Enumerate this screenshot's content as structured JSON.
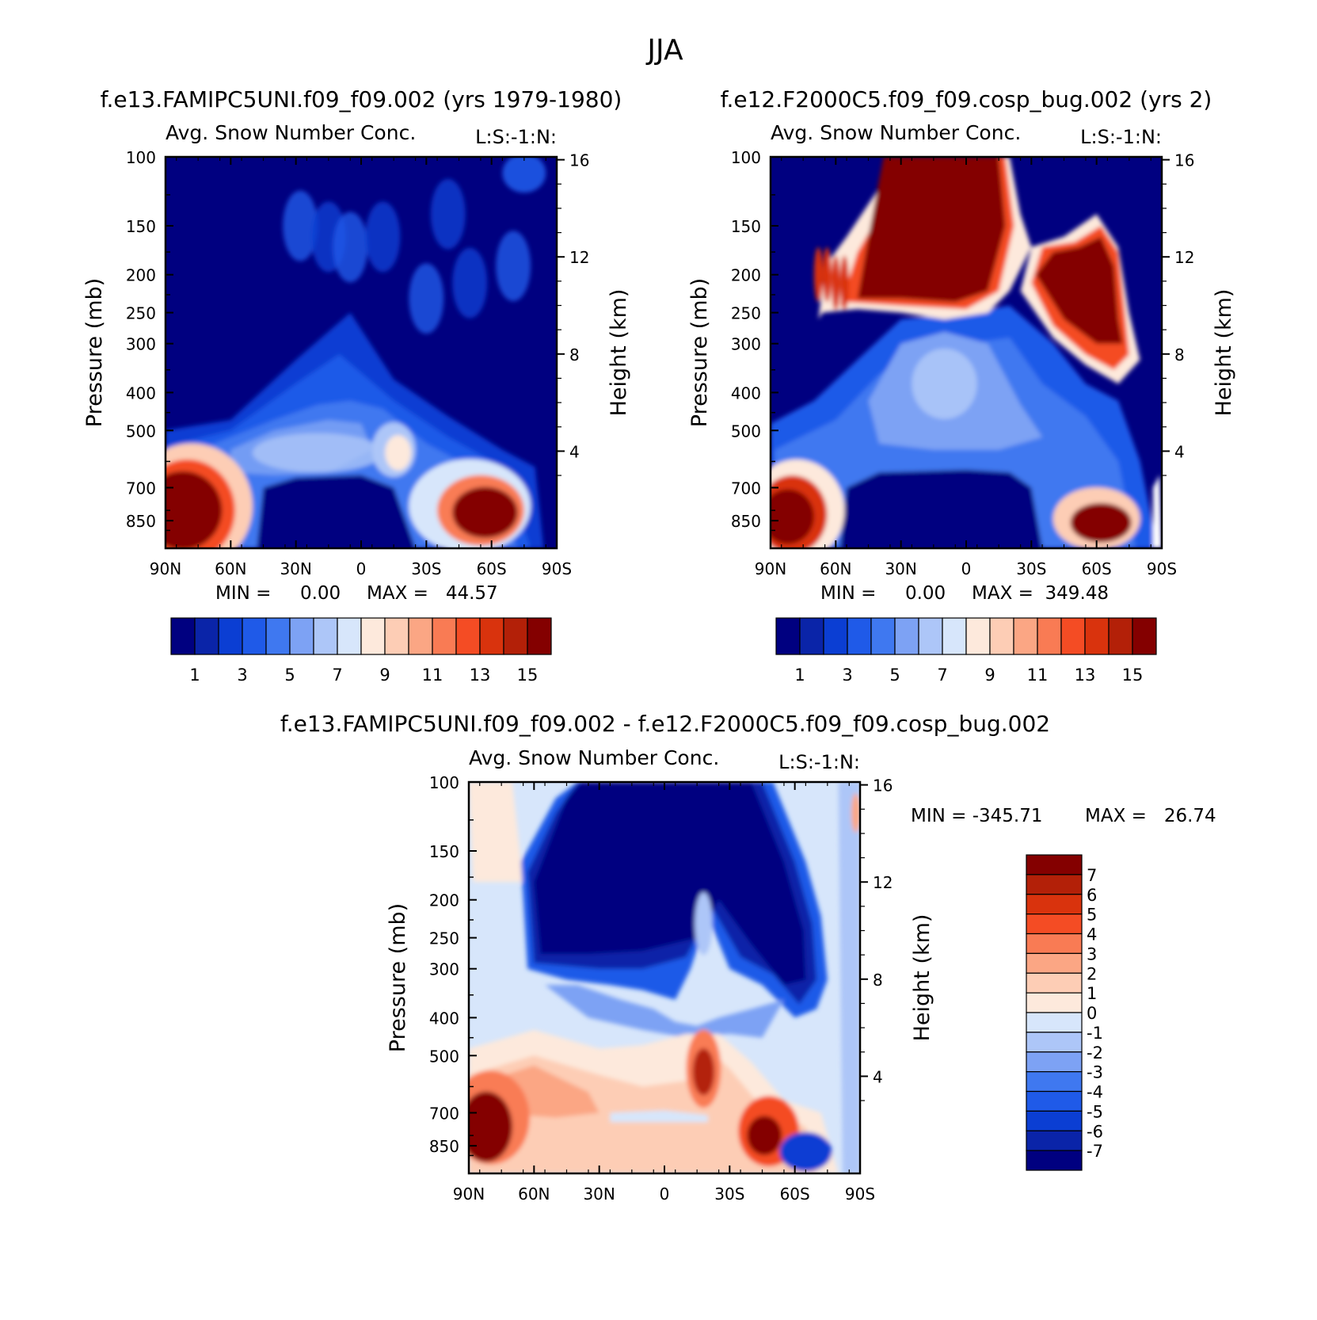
{
  "figure": {
    "season": "JJA"
  },
  "colors": {
    "scale16": [
      "#000080",
      "#0a24a8",
      "#0b3ed3",
      "#1f5ae8",
      "#3f78f0",
      "#7da2f4",
      "#adc6f8",
      "#d7e6fb",
      "#fde9dc",
      "#fdcdb5",
      "#fba684",
      "#f97b54",
      "#f44c24",
      "#d9330d",
      "#b32008",
      "#840000"
    ],
    "diff15": [
      "#000080",
      "#0a24a8",
      "#0b3ed3",
      "#1f5ae8",
      "#3f78f0",
      "#7da2f4",
      "#adc6f8",
      "#d7e6fb",
      "#fde9dc",
      "#fdcdb5",
      "#fba684",
      "#f97b54",
      "#f44c24",
      "#d9330d",
      "#b32008",
      "#840000"
    ]
  },
  "chart_data": [
    {
      "type": "heatmap",
      "panel": "left",
      "case_title": "f.e13.FAMIPC5UNI.f09_f09.002 (yrs 1979-1980)",
      "subtitle": "Avg. Snow Number Conc.",
      "right_string": "L:S:-1:N:",
      "xlabel": "",
      "ylabel": "Pressure (mb)",
      "y2label": "Height (km)",
      "x_ticks": [
        "90N",
        "60N",
        "30N",
        "0",
        "30S",
        "60S",
        "90S"
      ],
      "y_ticks": [
        100,
        150,
        200,
        250,
        300,
        400,
        500,
        700,
        850
      ],
      "y2_ticks": [
        16,
        12,
        8,
        4
      ],
      "min_text": "MIN =     0.00",
      "max_text": "MAX =   44.57",
      "min": 0.0,
      "max": 44.57,
      "colorbar_labels": [
        "1",
        "3",
        "5",
        "7",
        "9",
        "11",
        "13",
        "15"
      ],
      "features": [
        {
          "desc": "high values near surface at 70N",
          "lat": 75,
          "pres": 780,
          "value": 16
        },
        {
          "desc": "high values near surface at 55S",
          "lat": -55,
          "pres": 800,
          "value": 16
        },
        {
          "desc": "moderate values near 500 mb at 15S",
          "lat": -18,
          "pres": 560,
          "value": 9
        }
      ]
    },
    {
      "type": "heatmap",
      "panel": "right",
      "case_title": "f.e12.F2000C5.f09_f09.cosp_bug.002 (yrs 2)",
      "subtitle": "Avg. Snow Number Conc.",
      "right_string": "L:S:-1:N:",
      "xlabel": "",
      "ylabel": "Pressure (mb)",
      "y2label": "Height (km)",
      "x_ticks": [
        "90N",
        "60N",
        "30N",
        "0",
        "30S",
        "60S",
        "90S"
      ],
      "y_ticks": [
        100,
        150,
        200,
        250,
        300,
        400,
        500,
        700,
        850
      ],
      "y2_ticks": [
        16,
        12,
        8,
        4
      ],
      "min_text": "MIN =     0.00",
      "max_text": "MAX =  349.48",
      "min": 0.0,
      "max": 349.48,
      "colorbar_labels": [
        "1",
        "3",
        "5",
        "7",
        "9",
        "11",
        "13",
        "15"
      ],
      "features": [
        {
          "desc": "very high values upper troposphere 40N to 15S",
          "lat": 15,
          "pres": 170,
          "value": 16
        },
        {
          "desc": "very high values upper troposphere 30S to 70S",
          "lat": -50,
          "pres": 210,
          "value": 16
        },
        {
          "desc": "high values near surface 80N",
          "lat": 80,
          "pres": 780,
          "value": 16
        },
        {
          "desc": "high values near surface 60S",
          "lat": -60,
          "pres": 830,
          "value": 16
        }
      ]
    },
    {
      "type": "heatmap",
      "panel": "difference",
      "case_title": "f.e13.FAMIPC5UNI.f09_f09.002 - f.e12.F2000C5.f09_f09.cosp_bug.002",
      "subtitle": "Avg. Snow Number Conc.",
      "right_string": "L:S:-1:N:",
      "xlabel": "",
      "ylabel": "Pressure (mb)",
      "y2label": "Height (km)",
      "x_ticks": [
        "90N",
        "60N",
        "30N",
        "0",
        "30S",
        "60S",
        "90S"
      ],
      "y_ticks": [
        100,
        150,
        200,
        250,
        300,
        400,
        500,
        700,
        850
      ],
      "y2_ticks": [
        16,
        12,
        8,
        4
      ],
      "min_text": "MIN = -345.71",
      "max_text": "MAX =   26.74",
      "min": -345.71,
      "max": 26.74,
      "colorbar_labels": [
        "7",
        "6",
        "5",
        "4",
        "3",
        "2",
        "1",
        "0",
        "-1",
        "-2",
        "-3",
        "-4",
        "-5",
        "-6",
        "-7"
      ],
      "features": [
        {
          "desc": "strong negative upper troposphere 60N to 75S",
          "lat": 0,
          "pres": 190,
          "value": -8
        },
        {
          "desc": "positive near surface 80N",
          "lat": 82,
          "pres": 760,
          "value": 8
        },
        {
          "desc": "positive near 500 mb 20S",
          "lat": -18,
          "pres": 560,
          "value": 7
        },
        {
          "desc": "positive near surface 50S",
          "lat": -48,
          "pres": 790,
          "value": 7
        }
      ]
    }
  ]
}
